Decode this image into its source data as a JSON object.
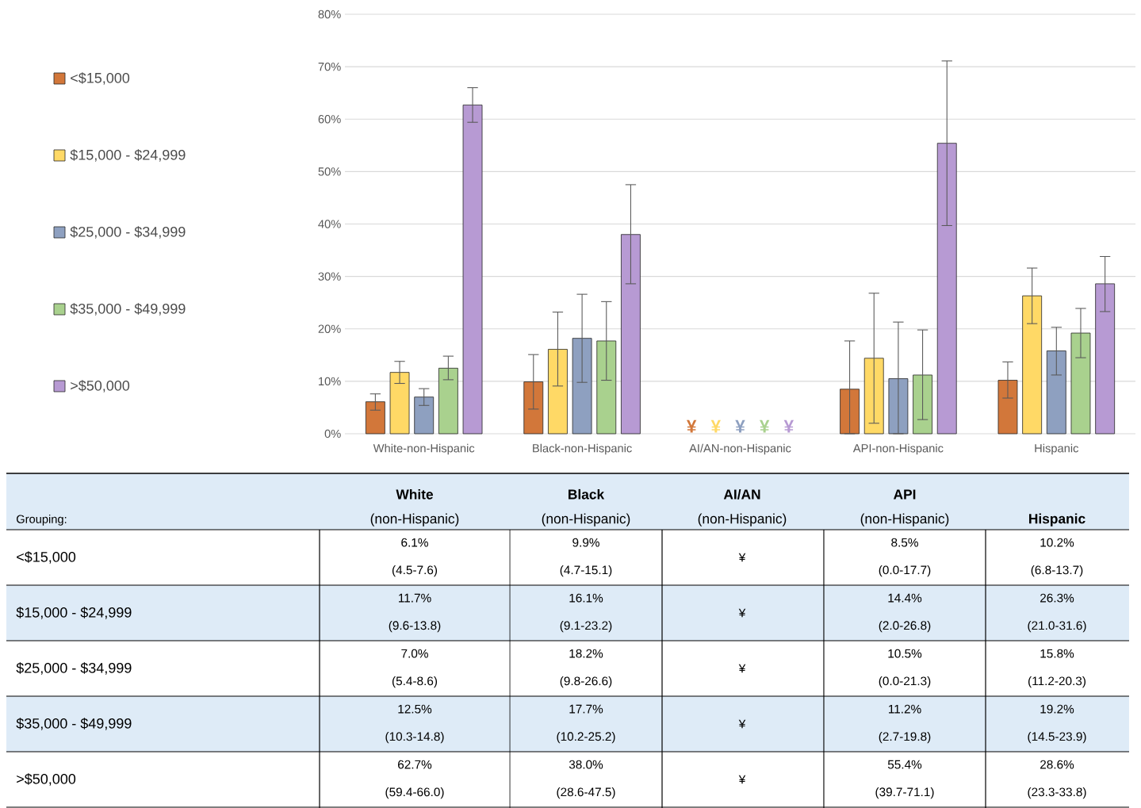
{
  "chart_data": {
    "type": "bar",
    "categories": [
      "White-non-Hispanic",
      "Black-non-Hispanic",
      "AI/AN-non-Hispanic",
      "API-non-Hispanic",
      "Hispanic"
    ],
    "series": [
      {
        "name": "<$15,000",
        "color": "#d2773a",
        "values": [
          6.1,
          9.9,
          null,
          8.5,
          10.2
        ],
        "errors": [
          [
            4.5,
            7.6
          ],
          [
            4.7,
            15.1
          ],
          null,
          [
            0.0,
            17.7
          ],
          [
            6.8,
            13.7
          ]
        ],
        "value_labels": [
          "6.1% (4.5-7.6)",
          "9.9% (4.7-15.1)",
          "¥",
          "8.5% (0.0-17.7)",
          "10.2% (6.8-13.7)"
        ]
      },
      {
        "name": "$15,000 - $24,999",
        "color": "#ffd966",
        "values": [
          11.7,
          16.1,
          null,
          14.4,
          26.3
        ],
        "errors": [
          [
            9.6,
            13.8
          ],
          [
            9.1,
            23.2
          ],
          null,
          [
            2.0,
            26.8
          ],
          [
            21.0,
            31.6
          ]
        ],
        "value_labels": [
          "11.7% (9.6-13.8)",
          "16.1% (9.1-23.2)",
          "¥",
          "14.4% (2.0-26.8)",
          "26.3% (21.0-31.6)"
        ]
      },
      {
        "name": "$25,000 - $34,999",
        "color": "#8ea0c0",
        "values": [
          7.0,
          18.2,
          null,
          10.5,
          15.8
        ],
        "errors": [
          [
            5.4,
            8.6
          ],
          [
            9.8,
            26.6
          ],
          null,
          [
            0.0,
            21.3
          ],
          [
            11.2,
            20.3
          ]
        ],
        "value_labels": [
          "7.0% (5.4-8.6)",
          "18.2% (9.8-26.6)",
          "¥",
          "10.5% (0.0-21.3)",
          "15.8% (11.2-20.3)"
        ]
      },
      {
        "name": "$35,000 - $49,999",
        "color": "#a9d18e",
        "values": [
          12.5,
          17.7,
          null,
          11.2,
          19.2
        ],
        "errors": [
          [
            10.3,
            14.8
          ],
          [
            10.2,
            25.2
          ],
          null,
          [
            2.7,
            19.8
          ],
          [
            14.5,
            23.9
          ]
        ],
        "value_labels": [
          "12.5% (10.3-14.8)",
          "17.7% (10.2-25.2)",
          "¥",
          "11.2% (2.7-19.8)",
          "19.2% (14.5-23.9)"
        ]
      },
      {
        "name": ">$50,000",
        "color": "#b79ad3",
        "values": [
          62.7,
          38.0,
          null,
          55.4,
          28.6
        ],
        "errors": [
          [
            59.4,
            66.0
          ],
          [
            28.6,
            47.5
          ],
          null,
          [
            39.7,
            71.1
          ],
          [
            23.3,
            33.8
          ]
        ],
        "value_labels": [
          "62.7% (59.4-66.0)",
          "38.0% (28.6-47.5)",
          "¥",
          "55.4% (39.7-71.1)",
          "28.6% (23.3-33.8)"
        ]
      }
    ],
    "ylim": [
      0,
      80
    ],
    "yticks": [
      {
        "value": 0,
        "label": "0%"
      },
      {
        "value": 10,
        "label": "10%"
      },
      {
        "value": 20,
        "label": "20%"
      },
      {
        "value": 30,
        "label": "30%"
      },
      {
        "value": 40,
        "label": "40%"
      },
      {
        "value": 50,
        "label": "50%"
      },
      {
        "value": 60,
        "label": "60%"
      },
      {
        "value": 70,
        "label": "70%"
      },
      {
        "value": 80,
        "label": "80%"
      }
    ],
    "grid": "y",
    "legend": "left",
    "annotations": [
      "Grouping:",
      "**White** (non-Hispanic)",
      "**Black** (non-Hispanic)",
      "**AI/AN** (non-Hispanic)",
      "**API** (non-Hispanic)",
      "**Hispanic**"
    ]
  }
}
